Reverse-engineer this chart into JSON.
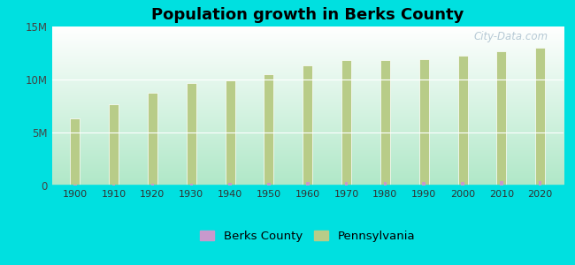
{
  "title": "Population growth in Berks County",
  "years": [
    1900,
    1910,
    1920,
    1930,
    1940,
    1950,
    1960,
    1970,
    1980,
    1990,
    2000,
    2010,
    2020
  ],
  "pennsylvania": [
    6302115,
    7665111,
    8720017,
    9631350,
    9900180,
    10498012,
    11319366,
    11793909,
    11863895,
    11881643,
    12281054,
    12702379,
    12964056
  ],
  "berks_county": [
    97004,
    114443,
    148074,
    194158,
    209525,
    255743,
    296382,
    312509,
    312509,
    336523,
    373638,
    411442,
    421164
  ],
  "pa_color": "#b8cc88",
  "berks_color": "#c899cc",
  "bg_color": "#00e0e0",
  "plot_bg_top": "#ffffff",
  "plot_bg_bottom": "#b0e8c8",
  "watermark": "City-Data.com",
  "ylim": [
    0,
    15000000
  ],
  "yticks": [
    0,
    5000000,
    10000000,
    15000000
  ],
  "ytick_labels": [
    "0",
    "5M",
    "10M",
    "15M"
  ],
  "pa_bar_width": 0.25,
  "berks_bar_width": 0.08,
  "legend_labels": [
    "Berks County",
    "Pennsylvania"
  ]
}
